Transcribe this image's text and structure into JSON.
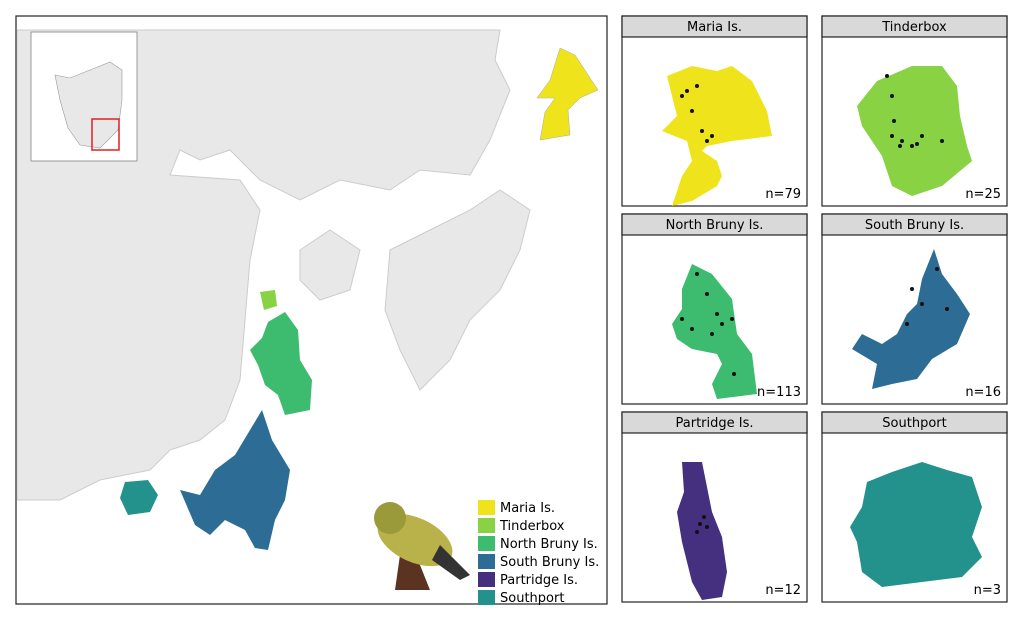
{
  "legend": {
    "items": [
      {
        "label": "Maria Is.",
        "color": "#efe41b"
      },
      {
        "label": "Tinderbox",
        "color": "#88d244"
      },
      {
        "label": "North Bruny Is.",
        "color": "#3dbb6f"
      },
      {
        "label": "South Bruny Is.",
        "color": "#2d6c95"
      },
      {
        "label": "Partridge Is.",
        "color": "#44307f"
      },
      {
        "label": "Southport",
        "color": "#23918c"
      }
    ]
  },
  "panels": [
    {
      "title": "Maria Is.",
      "n_label": "n=79"
    },
    {
      "title": "Tinderbox",
      "n_label": "n=25"
    },
    {
      "title": "North Bruny Is.",
      "n_label": "n=113"
    },
    {
      "title": "South Bruny Is.",
      "n_label": "n=16"
    },
    {
      "title": "Partridge Is.",
      "n_label": "n=12"
    },
    {
      "title": "Southport",
      "n_label": "n=3"
    }
  ]
}
